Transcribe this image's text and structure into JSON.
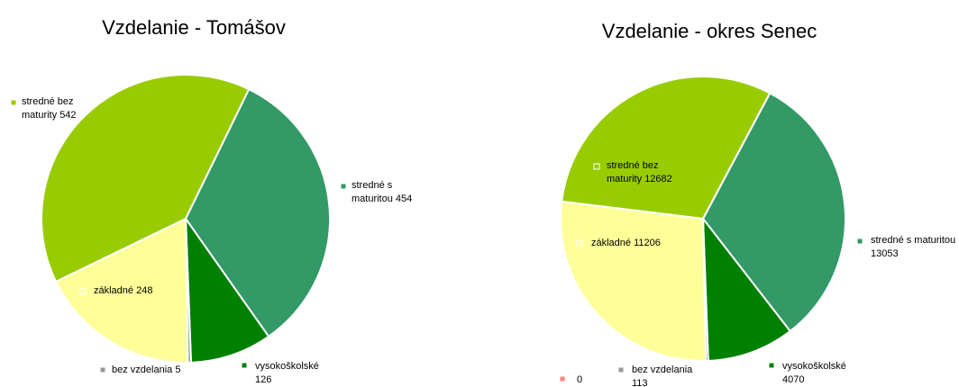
{
  "chart_data": [
    {
      "type": "pie",
      "title": "Vzdelanie - Tomášov",
      "categories": [
        "stredné s maturitou",
        "vysokoškolské",
        "bez vzdelania",
        "základné",
        "stredné bez maturity"
      ],
      "values": [
        454,
        126,
        5,
        248,
        542
      ],
      "colors": [
        "#339966",
        "#008000",
        "#999999",
        "#ffff99",
        "#99cc00"
      ]
    },
    {
      "type": "pie",
      "title": "Vzdelanie - okres Senec",
      "categories": [
        "stredné s maturitou",
        "vysokoškolské",
        "bez vzdelania",
        "základné",
        "stredné bez maturity",
        null
      ],
      "values": [
        13053,
        4070,
        113,
        11206,
        12682,
        0
      ],
      "colors": [
        "#339966",
        "#008000",
        "#999999",
        "#ffff99",
        "#99cc00",
        "#ff8080"
      ]
    }
  ]
}
